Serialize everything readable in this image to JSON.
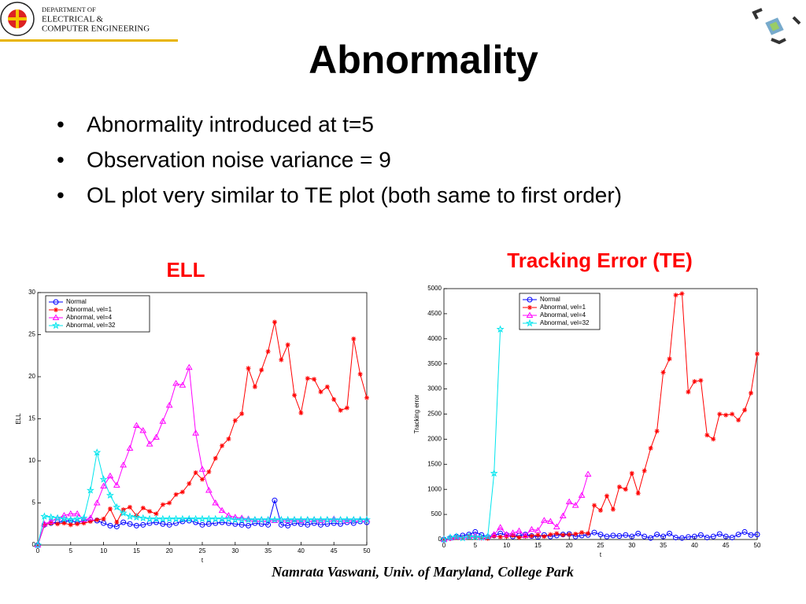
{
  "logo": {
    "lines": [
      "DEPARTMENT OF",
      "ELECTRICAL &",
      "COMPUTER ENGINEERING"
    ]
  },
  "title": "Abnormality",
  "bullets": [
    "Abnormality introduced at t=5",
    "Observation noise variance = 9",
    "OL plot very similar to TE plot (both same to first order)"
  ],
  "footer": "Namrata Vaswani, Univ. of Maryland, College Park",
  "chart_data": [
    {
      "type": "line",
      "title": "ELL",
      "xlabel": "t",
      "ylabel": "ELL",
      "title_color": "#ff0000",
      "x": [
        0,
        1,
        2,
        3,
        4,
        5,
        6,
        7,
        8,
        9,
        10,
        11,
        12,
        13,
        14,
        15,
        16,
        17,
        18,
        19,
        20,
        21,
        22,
        23,
        24,
        25,
        26,
        27,
        28,
        29,
        30,
        31,
        32,
        33,
        34,
        35,
        36,
        37,
        38,
        39,
        40,
        41,
        42,
        43,
        44,
        45,
        46,
        47,
        48,
        49,
        50
      ],
      "xlim": [
        0,
        50
      ],
      "xticks": [
        0,
        5,
        10,
        15,
        20,
        25,
        30,
        35,
        40,
        45,
        50
      ],
      "ylim": [
        0,
        30
      ],
      "yticks": [
        0,
        5,
        10,
        15,
        20,
        25,
        30
      ],
      "grid": false,
      "legend": "upper left",
      "series": [
        {
          "name": "Normal",
          "color": "#0000ff",
          "marker": "o",
          "values": [
            0,
            2.4,
            2.6,
            2.7,
            2.8,
            2.9,
            2.7,
            2.9,
            3.0,
            2.9,
            2.6,
            2.3,
            2.2,
            2.7,
            2.5,
            2.3,
            2.4,
            2.6,
            2.7,
            2.5,
            2.4,
            2.6,
            2.8,
            2.9,
            2.7,
            2.4,
            2.5,
            2.6,
            2.7,
            2.6,
            2.5,
            2.4,
            2.3,
            2.6,
            2.5,
            2.4,
            5.3,
            2.4,
            2.3,
            2.6,
            2.5,
            2.4,
            2.6,
            2.4,
            2.5,
            2.6,
            2.5,
            2.7,
            2.6,
            2.8,
            2.7
          ]
        },
        {
          "name": "Abnormal, vel=1",
          "color": "#ff0000",
          "marker": "*",
          "values": [
            0,
            2.4,
            2.6,
            2.5,
            2.6,
            2.4,
            2.5,
            2.6,
            2.8,
            3.0,
            3.1,
            4.3,
            2.7,
            4.2,
            4.5,
            3.5,
            4.4,
            4.0,
            3.7,
            4.8,
            5.0,
            6.0,
            6.3,
            7.3,
            8.6,
            7.8,
            8.7,
            10.3,
            11.8,
            12.6,
            14.8,
            15.6,
            21.0,
            18.8,
            20.8,
            23.0,
            26.5,
            22.0,
            23.8,
            17.8,
            15.7,
            19.8,
            19.7,
            18.2,
            18.8,
            17.3,
            16.0,
            16.3,
            24.5,
            20.3,
            17.5
          ]
        },
        {
          "name": "Abnormal, vel=4",
          "color": "#ff00ff",
          "marker": "^",
          "values": [
            0,
            2.5,
            2.8,
            3.2,
            3.5,
            3.7,
            3.7,
            3.0,
            3.2,
            5.0,
            7.0,
            8.2,
            7.1,
            9.5,
            11.5,
            14.2,
            13.6,
            12.0,
            12.8,
            14.7,
            16.6,
            19.2,
            19.0,
            21.1,
            13.3,
            9.0,
            6.5,
            5.0,
            4.1,
            3.5,
            3.3,
            3.2,
            3.1,
            3.0,
            3.0,
            3.0,
            2.9,
            3.0,
            2.9,
            3.0,
            2.9,
            3.0,
            3.0,
            2.9,
            3.0,
            3.1,
            3.0,
            2.9,
            3.0,
            3.0,
            3.0
          ]
        },
        {
          "name": "Abnormal, vel=32",
          "color": "#00e5ee",
          "marker": "p",
          "values": [
            0,
            3.4,
            3.3,
            3.2,
            3.1,
            3.0,
            3.1,
            3.2,
            6.5,
            11.0,
            7.8,
            5.9,
            4.5,
            3.8,
            3.4,
            3.3,
            3.2,
            3.1,
            3.1,
            3.1,
            3.1,
            3.1,
            3.1,
            3.1,
            3.1,
            3.1,
            3.1,
            3.1,
            3.1,
            3.1,
            3.0,
            3.0,
            3.0,
            3.0,
            3.0,
            3.0,
            3.0,
            3.0,
            3.0,
            3.0,
            3.0,
            3.0,
            3.0,
            3.0,
            3.0,
            3.0,
            3.0,
            3.0,
            3.0,
            3.0,
            3.0
          ]
        }
      ]
    },
    {
      "type": "line",
      "title": "Tracking Error (TE)",
      "xlabel": "t",
      "ylabel": "Tracking error",
      "title_color": "#ff0000",
      "x": [
        0,
        1,
        2,
        3,
        4,
        5,
        6,
        7,
        8,
        9,
        10,
        11,
        12,
        13,
        14,
        15,
        16,
        17,
        18,
        19,
        20,
        21,
        22,
        23,
        24,
        25,
        26,
        27,
        28,
        29,
        30,
        31,
        32,
        33,
        34,
        35,
        36,
        37,
        38,
        39,
        40,
        41,
        42,
        43,
        44,
        45,
        46,
        47,
        48,
        49,
        50
      ],
      "xlim": [
        0,
        50
      ],
      "xticks": [
        0,
        5,
        10,
        15,
        20,
        25,
        30,
        35,
        40,
        45,
        50
      ],
      "ylim": [
        0,
        5000
      ],
      "yticks": [
        0,
        500,
        1000,
        1500,
        2000,
        2500,
        3000,
        3500,
        4000,
        4500,
        5000
      ],
      "grid": false,
      "legend": "upper center",
      "series": [
        {
          "name": "Normal",
          "color": "#0000ff",
          "marker": "o",
          "values": [
            0,
            30,
            60,
            80,
            100,
            150,
            90,
            50,
            80,
            120,
            90,
            60,
            80,
            100,
            70,
            50,
            90,
            60,
            80,
            100,
            110,
            60,
            80,
            90,
            140,
            100,
            60,
            80,
            70,
            90,
            60,
            120,
            60,
            30,
            100,
            60,
            120,
            40,
            30,
            50,
            60,
            90,
            40,
            60,
            110,
            60,
            40,
            100,
            150,
            90,
            100
          ]
        },
        {
          "name": "Abnormal, vel=1",
          "color": "#ff0000",
          "marker": "*",
          "values": [
            0,
            20,
            40,
            30,
            60,
            40,
            30,
            20,
            70,
            50,
            60,
            80,
            40,
            60,
            70,
            90,
            60,
            100,
            120,
            90,
            100,
            110,
            140,
            120,
            680,
            580,
            870,
            600,
            1050,
            1000,
            1320,
            920,
            1370,
            1820,
            2160,
            3330,
            3600,
            4870,
            4900,
            2940,
            3150,
            3170,
            2080,
            2000,
            2500,
            2480,
            2500,
            2380,
            2580,
            2920,
            3700
          ]
        },
        {
          "name": "Abnormal, vel=4",
          "color": "#ff00ff",
          "marker": "^",
          "values": [
            0,
            30,
            50,
            40,
            60,
            80,
            40,
            60,
            100,
            240,
            100,
            130,
            170,
            80,
            200,
            180,
            380,
            360,
            250,
            470,
            750,
            680,
            880,
            1300,
            null,
            null,
            null,
            null,
            null,
            null,
            null,
            null,
            null,
            null,
            null,
            null,
            null,
            null,
            null,
            null,
            null,
            null,
            null,
            null,
            null,
            null,
            null,
            null,
            null,
            null,
            null
          ]
        },
        {
          "name": "Abnormal, vel=32",
          "color": "#00e5ee",
          "marker": "p",
          "values": [
            0,
            40,
            60,
            30,
            60,
            50,
            40,
            60,
            1320,
            4190,
            null,
            null,
            null,
            null,
            null,
            null,
            null,
            null,
            null,
            null,
            null,
            null,
            null,
            null,
            null,
            null,
            null,
            null,
            null,
            null,
            null,
            null,
            null,
            null,
            null,
            null,
            null,
            null,
            null,
            null,
            null,
            null,
            null,
            null,
            null,
            null,
            null,
            null,
            null,
            null,
            null
          ]
        }
      ]
    }
  ]
}
